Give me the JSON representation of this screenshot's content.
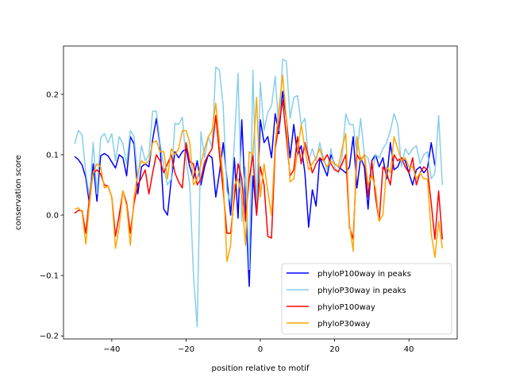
{
  "chart_data": {
    "type": "line",
    "title": "",
    "xlabel": "position relative to motif",
    "ylabel": "conservation score",
    "xlim": [
      -53,
      53
    ],
    "ylim": [
      -0.205,
      0.28
    ],
    "xticks": [
      -40,
      -20,
      0,
      20,
      40
    ],
    "yticks": [
      -0.2,
      -0.1,
      0.0,
      0.1,
      0.2
    ],
    "xtick_labels": [
      "−40",
      "−20",
      "0",
      "20",
      "40"
    ],
    "ytick_labels": [
      "−0.2",
      "−0.1",
      "0.0",
      "0.1",
      "0.2"
    ],
    "legend_position": "lower-right",
    "grid": false,
    "x_start": -50,
    "x_step": 1,
    "series": [
      {
        "name": "phyloP100way in peaks",
        "color": "#0000ff",
        "values": [
          0.097,
          0.092,
          0.083,
          0.062,
          0.018,
          0.085,
          0.023,
          0.098,
          0.102,
          0.098,
          0.088,
          0.078,
          0.1,
          0.095,
          0.065,
          0.13,
          0.118,
          0.035,
          0.08,
          0.085,
          0.08,
          0.125,
          0.16,
          0.115,
          0.01,
          0.0,
          0.058,
          0.105,
          0.095,
          0.105,
          0.11,
          0.08,
          0.06,
          0.09,
          0.05,
          0.08,
          0.1,
          0.095,
          0.03,
          0.07,
          0.12,
          0.06,
          0.0,
          0.095,
          -0.005,
          0.158,
          0.02,
          -0.118,
          0.065,
          0.0,
          0.158,
          0.12,
          0.13,
          0.095,
          0.168,
          0.135,
          0.205,
          0.16,
          0.095,
          0.15,
          0.1,
          0.115,
          0.07,
          -0.02,
          0.042,
          0.015,
          0.095,
          0.08,
          0.065,
          0.1,
          0.085,
          0.08,
          0.075,
          0.07,
          0.08,
          0.13,
          0.045,
          0.095,
          0.08,
          0.01,
          0.09,
          0.1,
          0.08,
          0.095,
          0.06,
          0.12,
          0.075,
          0.08,
          0.095,
          0.09,
          0.07,
          0.05,
          0.075,
          0.08,
          0.07,
          0.078,
          0.12,
          0.082
        ]
      },
      {
        "name": "phyloP30way in peaks",
        "color": "#87ceeb",
        "values": [
          0.118,
          0.14,
          0.133,
          0.07,
          0.03,
          0.12,
          0.035,
          0.128,
          0.135,
          0.12,
          0.135,
          0.09,
          0.13,
          0.118,
          0.085,
          0.14,
          0.13,
          0.06,
          0.115,
          0.09,
          0.1,
          0.172,
          0.172,
          0.12,
          0.08,
          0.05,
          0.06,
          0.152,
          0.15,
          0.162,
          0.09,
          0.05,
          -0.1,
          -0.185,
          0.138,
          0.095,
          0.13,
          0.112,
          0.245,
          0.24,
          0.18,
          0.04,
          0.02,
          0.12,
          0.235,
          -0.01,
          0.08,
          -0.09,
          0.24,
          0.01,
          0.22,
          0.14,
          0.17,
          0.18,
          0.23,
          0.14,
          0.258,
          0.255,
          0.16,
          0.195,
          0.198,
          0.15,
          0.16,
          0.09,
          0.11,
          0.09,
          0.12,
          0.095,
          0.075,
          0.11,
          0.08,
          0.07,
          0.095,
          0.168,
          0.15,
          0.15,
          0.1,
          0.16,
          0.1,
          0.095,
          0.065,
          0.1,
          0.095,
          0.11,
          0.12,
          0.14,
          0.168,
          0.15,
          0.08,
          0.11,
          0.1,
          0.11,
          0.115,
          0.085,
          0.1,
          0.105,
          0.06,
          0.07,
          0.165,
          0.05
        ]
      },
      {
        "name": "phyloP100way",
        "color": "#ff0000",
        "values": [
          0.003,
          0.008,
          0.007,
          -0.03,
          0.03,
          0.07,
          0.075,
          0.068,
          0.05,
          0.048,
          0.03,
          -0.035,
          0.0,
          0.04,
          0.02,
          -0.03,
          0.02,
          0.05,
          0.062,
          0.075,
          0.035,
          0.07,
          0.1,
          0.09,
          0.07,
          0.085,
          0.1,
          0.07,
          0.055,
          0.045,
          0.12,
          0.088,
          0.085,
          0.05,
          0.06,
          0.088,
          0.1,
          0.11,
          0.165,
          0.1,
          0.04,
          -0.03,
          -0.03,
          0.03,
          0.085,
          0.06,
          -0.01,
          0.06,
          0.1,
          0.0,
          0.08,
          0.05,
          -0.035,
          -0.038,
          0.11,
          0.15,
          0.19,
          0.13,
          0.065,
          0.075,
          0.13,
          0.085,
          0.12,
          0.095,
          0.07,
          0.085,
          0.095,
          0.09,
          0.1,
          0.085,
          0.075,
          0.072,
          0.085,
          0.1,
          -0.02,
          -0.04,
          0.1,
          0.09,
          0.1,
          0.03,
          0.09,
          0.03,
          -0.01,
          0.08,
          0.07,
          0.05,
          0.1,
          0.09,
          0.095,
          0.08,
          0.07,
          0.095,
          0.05,
          0.07,
          0.08,
          0.075,
          0.02,
          -0.04,
          0.04,
          -0.04
        ]
      },
      {
        "name": "phyloP30way",
        "color": "#ffa500",
        "values": [
          0.01,
          0.012,
          0.005,
          -0.048,
          0.02,
          0.07,
          0.085,
          0.08,
          0.045,
          0.048,
          0.03,
          -0.055,
          -0.02,
          0.04,
          0.015,
          -0.05,
          0.03,
          0.07,
          0.09,
          0.085,
          0.09,
          0.12,
          0.123,
          0.105,
          0.105,
          0.06,
          0.11,
          0.1,
          0.11,
          0.14,
          0.14,
          0.12,
          0.05,
          0.06,
          0.085,
          0.11,
          0.13,
          0.14,
          0.185,
          0.12,
          0.06,
          -0.077,
          -0.05,
          0.05,
          0.06,
          0.03,
          -0.05,
          0.105,
          0.1,
          0.195,
          0.03,
          0.085,
          0.04,
          0.0,
          0.118,
          0.175,
          0.232,
          0.16,
          0.055,
          0.06,
          0.105,
          0.15,
          0.11,
          0.075,
          0.085,
          0.095,
          0.11,
          0.09,
          0.08,
          0.09,
          0.085,
          0.08,
          0.11,
          0.135,
          -0.015,
          -0.06,
          0.13,
          0.09,
          0.1,
          0.05,
          0.065,
          0.045,
          -0.01,
          0.0,
          0.08,
          0.07,
          0.13,
          0.11,
          0.09,
          0.095,
          0.08,
          0.08,
          0.06,
          0.07,
          0.06,
          0.06,
          -0.03,
          -0.07,
          -0.01,
          -0.055
        ]
      }
    ]
  }
}
